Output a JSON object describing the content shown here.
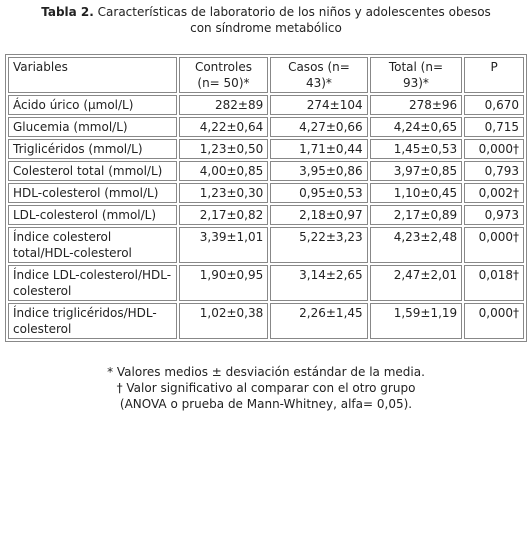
{
  "title": {
    "label": "Tabla 2.",
    "text": "Características de laboratorio de los niños y adolescentes obesos con síndrome metabólico"
  },
  "table": {
    "header": [
      "Variables",
      "Controles (n= 50)*",
      "Casos (n= 43)*",
      "Total (n= 93)*",
      "P"
    ],
    "rows": [
      [
        "Ácido úrico (µmol/L)",
        "282±89",
        "274±104",
        "278±96",
        "0,670"
      ],
      [
        "Glucemia (mmol/L)",
        "4,22±0,64",
        "4,27±0,66",
        "4,24±0,65",
        "0,715"
      ],
      [
        "Triglicéridos (mmol/L)",
        "1,23±0,50",
        "1,71±0,44",
        "1,45±0,53",
        "0,000†"
      ],
      [
        "Colesterol total (mmol/L)",
        "4,00±0,85",
        "3,95±0,86",
        "3,97±0,85",
        "0,793"
      ],
      [
        "HDL-colesterol (mmol/L)",
        "1,23±0,30",
        "0,95±0,53",
        "1,10±0,45",
        "0,002†"
      ],
      [
        "LDL-colesterol (mmol/L)",
        "2,17±0,82",
        "2,18±0,97",
        "2,17±0,89",
        "0,973"
      ],
      [
        "Índice colesterol total/HDL-colesterol",
        "3,39±1,01",
        "5,22±3,23",
        "4,23±2,48",
        "0,000†"
      ],
      [
        "Índice LDL-colesterol/HDL-colesterol",
        "1,90±0,95",
        "3,14±2,65",
        "2,47±2,01",
        "0,018†"
      ],
      [
        "Índice triglicéridos/HDL-colesterol",
        "1,02±0,38",
        "2,26±1,45",
        "1,59±1,19",
        "0,000†"
      ]
    ]
  },
  "notes": [
    "*  Valores medios  ±  desviación estándar de la media.",
    "† Valor significativo al comparar con el otro grupo",
    "(ANOVA o prueba de Mann-Whitney, alfa= 0,05)."
  ]
}
